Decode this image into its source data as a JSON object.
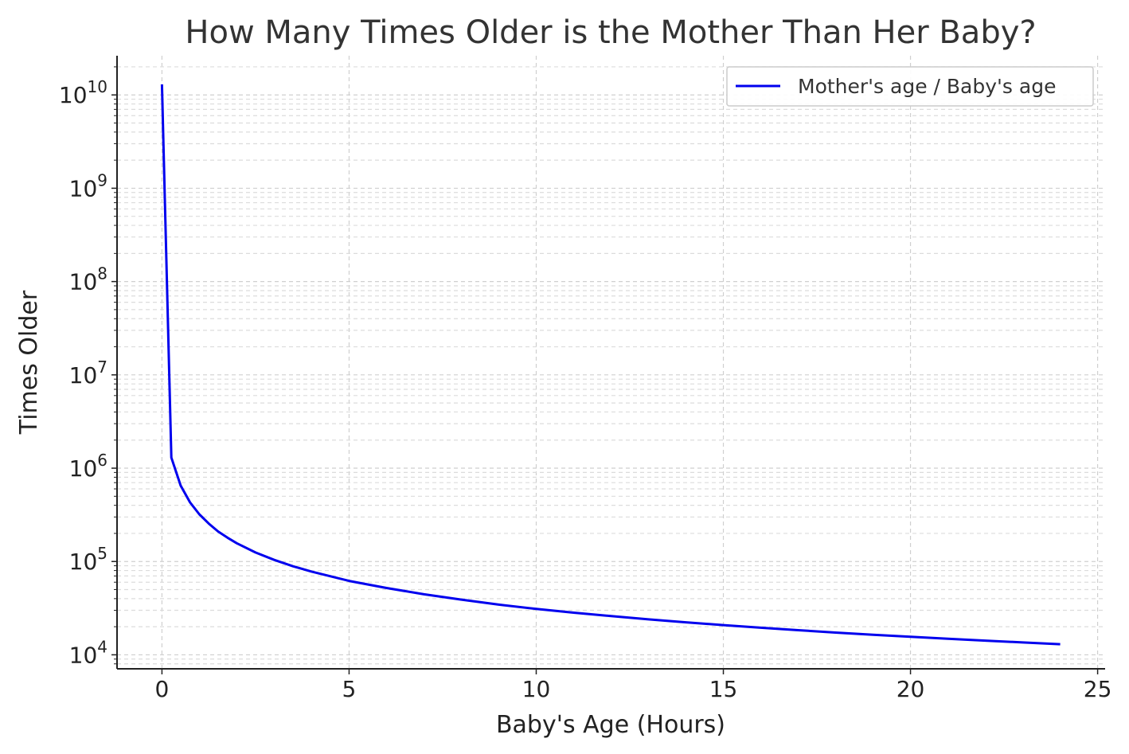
{
  "chart_data": {
    "type": "line",
    "title": "How Many Times Older is the Mother Than Her Baby?",
    "xlabel": "Baby's Age (Hours)",
    "ylabel": "Times Older",
    "xlim": [
      -1.2,
      25.2
    ],
    "ylim_log10": [
      3.85,
      10.42
    ],
    "x_ticks": [
      0,
      5,
      10,
      15,
      20,
      25
    ],
    "y_tick_exponents": [
      4,
      5,
      6,
      7,
      8,
      9,
      10
    ],
    "y_scale": "log",
    "grid": true,
    "legend_position": "top-right",
    "series": [
      {
        "name": "Mother's age / Baby's age",
        "color": "#0000ee",
        "x": [
          0,
          0.25,
          0.5,
          0.75,
          1,
          1.25,
          1.5,
          1.75,
          2,
          2.5,
          3,
          3.5,
          4,
          5,
          6,
          7,
          8,
          9,
          10,
          11,
          12,
          13,
          14,
          15,
          16,
          17,
          18,
          19,
          20,
          21,
          22,
          23,
          24
        ],
        "y": [
          13000000000,
          1300000,
          650000,
          430000,
          320000,
          255000,
          210000,
          180000,
          157000,
          125000,
          104000,
          89000,
          78000,
          62000,
          52000,
          44500,
          39000,
          34500,
          31000,
          28300,
          26000,
          24000,
          22300,
          20800,
          19500,
          18350,
          17300,
          16400,
          15600,
          14850,
          14200,
          13570,
          13000
        ]
      }
    ]
  }
}
